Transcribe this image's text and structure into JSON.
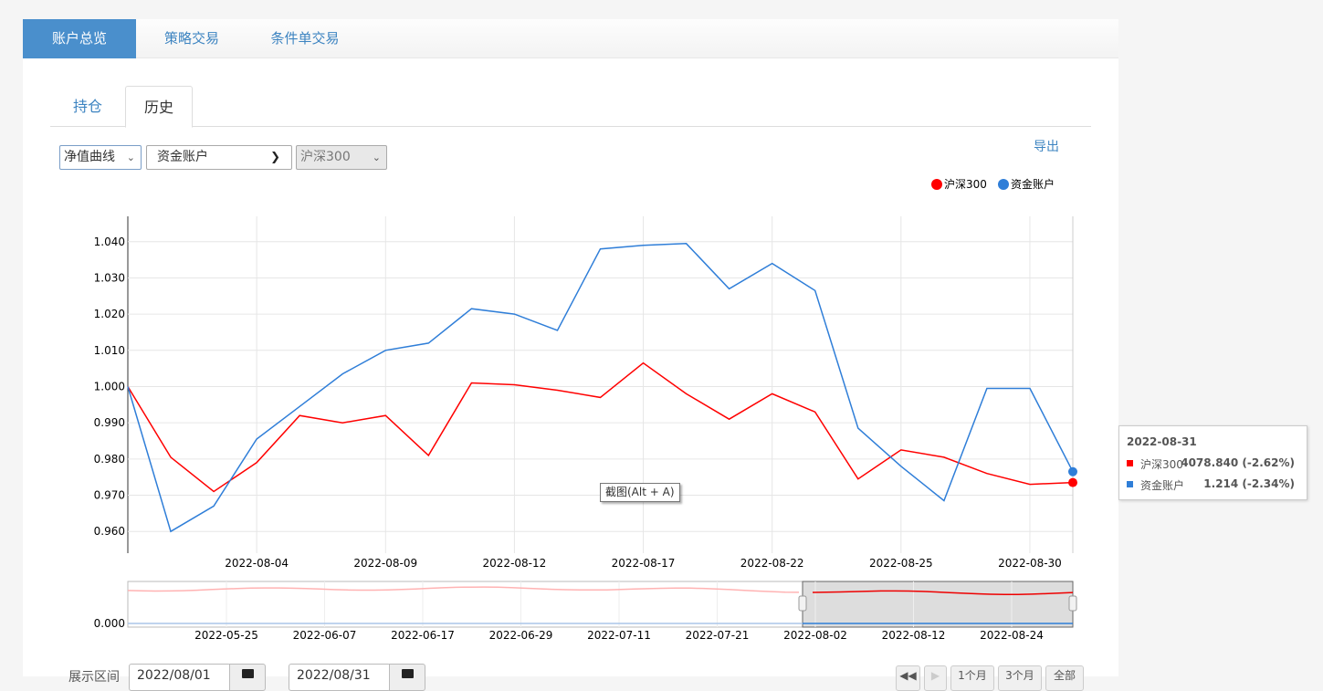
{
  "top_tabs": [
    "账户总览",
    "策略交易",
    "条件单交易"
  ],
  "sub_tabs": [
    "持仓",
    "历史"
  ],
  "controls": {
    "chart_type": "净值曲线",
    "account": "资金账户",
    "benchmark": "沪深300",
    "export": "导出"
  },
  "legend": [
    "沪深300",
    "资金账户"
  ],
  "colors": {
    "benchmark": "#ff0000",
    "account": "#2f7ed8",
    "accent": "#4a8fcc"
  },
  "chart_data": {
    "type": "line",
    "x_dates": [
      "2022-08-01",
      "2022-08-02",
      "2022-08-03",
      "2022-08-04",
      "2022-08-05",
      "2022-08-08",
      "2022-08-09",
      "2022-08-10",
      "2022-08-11",
      "2022-08-12",
      "2022-08-15",
      "2022-08-16",
      "2022-08-17",
      "2022-08-18",
      "2022-08-19",
      "2022-08-22",
      "2022-08-23",
      "2022-08-24",
      "2022-08-25",
      "2022-08-26",
      "2022-08-29",
      "2022-08-30",
      "2022-08-31"
    ],
    "series": [
      {
        "name": "沪深300",
        "color": "#ff0000",
        "values": [
          1.0,
          0.9805,
          0.971,
          0.979,
          0.992,
          0.99,
          0.992,
          0.981,
          1.001,
          1.0005,
          0.999,
          0.997,
          1.0065,
          0.998,
          0.991,
          0.998,
          0.993,
          0.9745,
          0.9825,
          0.9805,
          0.976,
          0.973,
          0.9735
        ]
      },
      {
        "name": "资金账户",
        "color": "#2f7ed8",
        "values": [
          1.0,
          0.96,
          0.967,
          0.9855,
          0.9945,
          1.0035,
          1.01,
          1.012,
          1.0215,
          1.02,
          1.0155,
          1.038,
          1.039,
          1.0395,
          1.027,
          1.034,
          1.0265,
          0.9885,
          0.978,
          0.9685,
          0.9995,
          0.9995,
          0.9765
        ]
      }
    ],
    "y_ticks": [
      "1.040",
      "1.030",
      "1.020",
      "1.010",
      "1.000",
      "0.990",
      "0.980",
      "0.970",
      "0.960"
    ],
    "ylim": [
      0.954,
      1.047
    ],
    "x_tick_labels": [
      "2022-08-04",
      "2022-08-09",
      "2022-08-12",
      "2022-08-17",
      "2022-08-22",
      "2022-08-25",
      "2022-08-30"
    ],
    "navigator": {
      "y_label": "0.000",
      "x_labels": [
        "2022-05-25",
        "2022-06-07",
        "2022-06-17",
        "2022-06-29",
        "2022-07-11",
        "2022-07-21",
        "2022-08-02",
        "2022-08-12",
        "2022-08-24"
      ]
    }
  },
  "tooltip": {
    "date": "2022-08-31",
    "rows": [
      {
        "name": "沪深300",
        "value": "4078.840 (-2.62%)",
        "color": "#ff0000"
      },
      {
        "name": "资金账户",
        "value": "1.214 (-2.34%)",
        "color": "#2f7ed8"
      }
    ]
  },
  "screenshot_tip": "截图(Alt + A)",
  "range": {
    "label": "展示区间",
    "start": "2022/08/01",
    "end": "2022/08/31",
    "zoom_buttons": [
      "1个月",
      "3个月",
      "全部"
    ]
  }
}
